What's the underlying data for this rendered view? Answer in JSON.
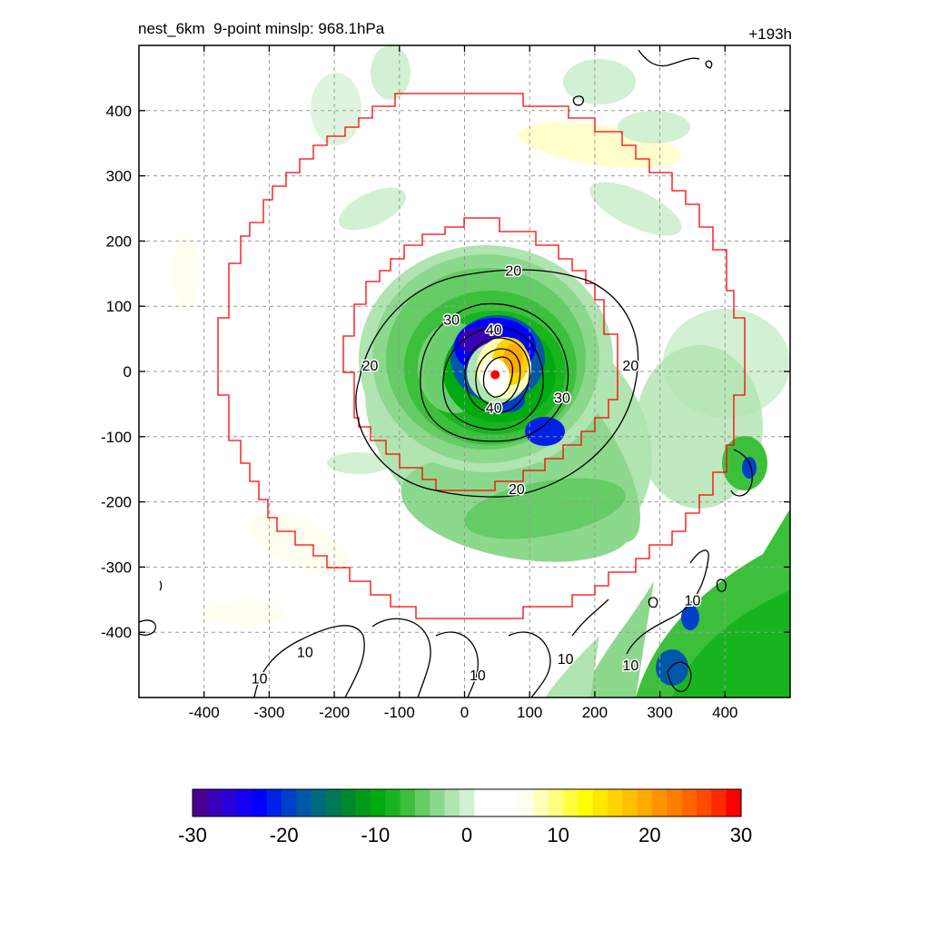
{
  "chart_data": {
    "type": "heatmap",
    "title_left": "nest_6km  9-point minslp: 968.1hPa",
    "title_right": "+193h",
    "xlim": [
      -500,
      500
    ],
    "ylim": [
      -500,
      500
    ],
    "x_ticks": [
      -400,
      -300,
      -200,
      -100,
      0,
      100,
      200,
      300,
      400
    ],
    "y_ticks": [
      400,
      300,
      200,
      100,
      0,
      -100,
      -200,
      -300,
      -400
    ],
    "grid": true,
    "storm_center": {
      "x": 47,
      "y": -5
    },
    "contour_labels": [
      {
        "text": "20",
        "x": 75,
        "y": 155
      },
      {
        "text": "30",
        "x": -20,
        "y": 80
      },
      {
        "text": "40",
        "x": 45,
        "y": 65
      },
      {
        "text": "20",
        "x": -145,
        "y": 10
      },
      {
        "text": "20",
        "x": 255,
        "y": 10
      },
      {
        "text": "30",
        "x": 150,
        "y": -40
      },
      {
        "text": "40",
        "x": 45,
        "y": -55
      },
      {
        "text": "20",
        "x": 80,
        "y": -180
      },
      {
        "text": "10",
        "x": -245,
        "y": -430
      },
      {
        "text": "10",
        "x": -315,
        "y": -470
      },
      {
        "text": "10",
        "x": 20,
        "y": -465
      },
      {
        "text": "10",
        "x": 155,
        "y": -440
      },
      {
        "text": "10",
        "x": 255,
        "y": -450
      },
      {
        "text": "10",
        "x": 350,
        "y": -350
      }
    ],
    "colorbar": {
      "min": -30,
      "max": 30,
      "ticks": [
        -30,
        -20,
        -10,
        0,
        10,
        20,
        30
      ],
      "colors": [
        "#4a0090",
        "#3a00b8",
        "#2a00d8",
        "#1400f0",
        "#0000ff",
        "#0020e8",
        "#0040c8",
        "#0058a8",
        "#006a80",
        "#007858",
        "#008830",
        "#009a18",
        "#00ab10",
        "#18b420",
        "#3cc03c",
        "#66cc66",
        "#8cd88c",
        "#b0e4b0",
        "#d2f0d2",
        "#ffffff",
        "#ffffff",
        "#ffffff",
        "#fffff0",
        "#ffffb8",
        "#ffff80",
        "#ffff40",
        "#ffff00",
        "#ffe800",
        "#ffd400",
        "#ffc000",
        "#ffaa00",
        "#ff9400",
        "#ff7e00",
        "#ff6600",
        "#ff4a00",
        "#ff2a00",
        "#ff0000"
      ]
    }
  }
}
